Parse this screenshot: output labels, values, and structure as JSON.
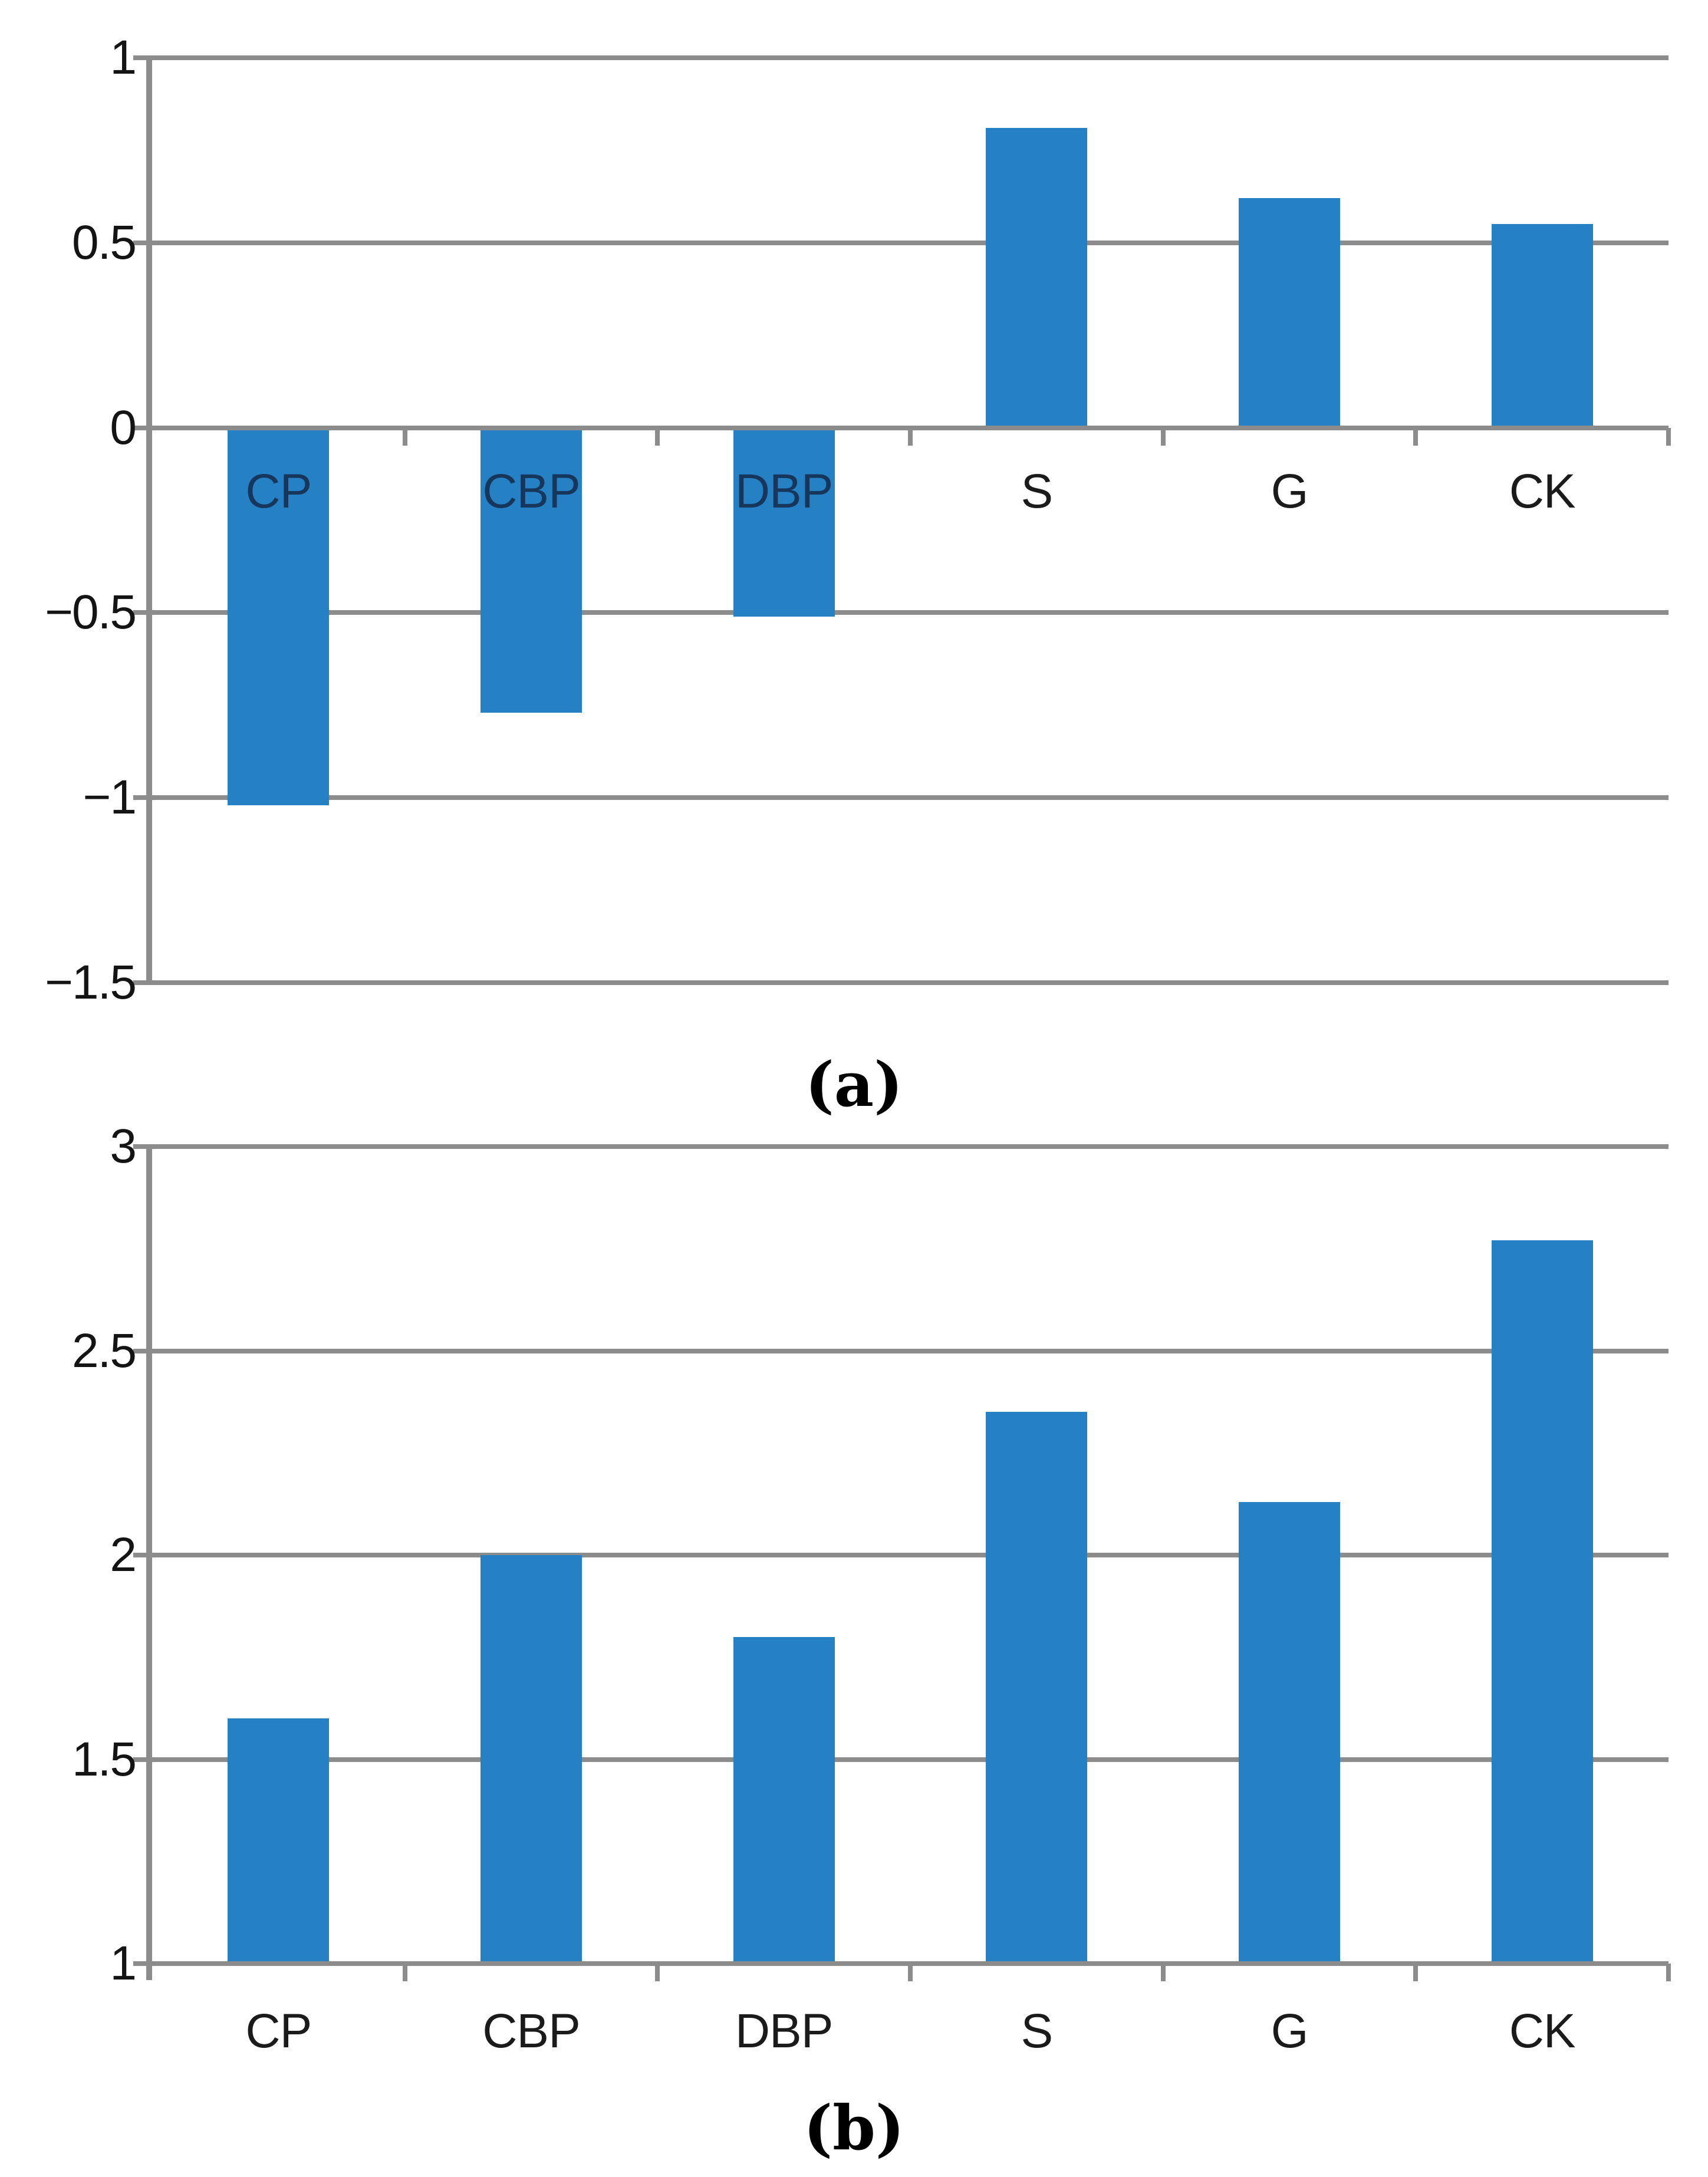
{
  "figure": {
    "background": "#ffffff",
    "caption_a": "(a)",
    "caption_b": "(b)"
  },
  "colors": {
    "bar": "#2580c4",
    "grid": "#8c8c8c",
    "axis": "#8c8c8c",
    "tick_label": "#141414",
    "category_label": "#1b1b1b",
    "category_label_on_bar": "#16365c",
    "caption": "#000000"
  },
  "chart_data": [
    {
      "id": "a",
      "type": "bar",
      "caption": "(a)",
      "categories": [
        "CP",
        "CBP",
        "DBP",
        "S",
        "G",
        "CK"
      ],
      "values": [
        -1.02,
        -0.77,
        -0.51,
        0.81,
        0.62,
        0.55
      ],
      "ylim": [
        -1.5,
        1
      ],
      "yticks": [
        1,
        0.5,
        0,
        -0.5,
        -1,
        -1.5
      ],
      "ytick_labels": [
        "1",
        "0.5",
        "0",
        "−0.5",
        "−1",
        "−1.5"
      ],
      "grid": true,
      "legend": "none",
      "category_label_position": "below-zero-line"
    },
    {
      "id": "b",
      "type": "bar",
      "caption": "(b)",
      "categories": [
        "CP",
        "CBP",
        "DBP",
        "S",
        "G",
        "CK"
      ],
      "values": [
        1.6,
        2.0,
        1.8,
        2.35,
        2.13,
        2.77
      ],
      "ylim": [
        1,
        3
      ],
      "yticks": [
        3,
        2.5,
        2,
        1.5,
        1
      ],
      "ytick_labels": [
        "3",
        "2.5",
        "2",
        "1.5",
        "1"
      ],
      "grid": true,
      "legend": "none",
      "category_label_position": "below-axis"
    }
  ]
}
